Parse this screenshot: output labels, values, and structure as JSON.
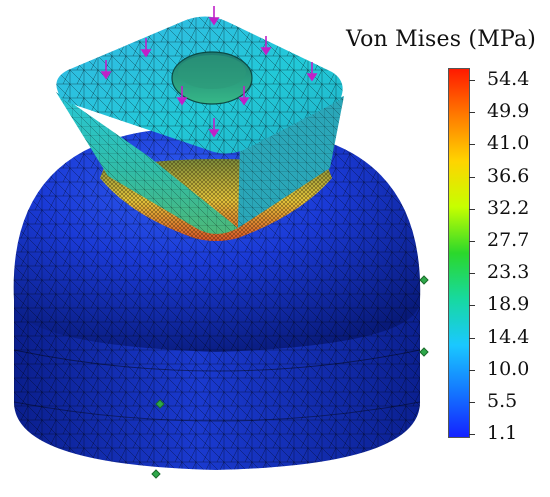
{
  "legend": {
    "title": "Von Mises (MPa)",
    "values": [
      "54.4",
      "49.9",
      "41.0",
      "36.6",
      "32.2",
      "27.7",
      "23.3",
      "18.9",
      "14.4",
      "10.0",
      "5.5",
      "1.1"
    ],
    "gradient_colors": [
      "#ff1a00",
      "#ff7a00",
      "#ffd400",
      "#c6ff00",
      "#2bd82b",
      "#17d9a0",
      "#1ac8ff",
      "#1478ff",
      "#1422ff"
    ]
  },
  "model": {
    "colors": {
      "dome_dark": "#0a1e8c",
      "dome_mid": "#1432c8",
      "dome_light": "#2e5cf0",
      "neck_cyan": "#28c8d8",
      "neck_green": "#3cbe8c",
      "hotspot_yellow": "#e6d23c",
      "hotspot_red": "#e0502a",
      "load_arrow": "#c020c8",
      "fixture_marker": "#2ea84a"
    },
    "icons": [
      "load-arrow-icon",
      "fixture-icon"
    ]
  }
}
